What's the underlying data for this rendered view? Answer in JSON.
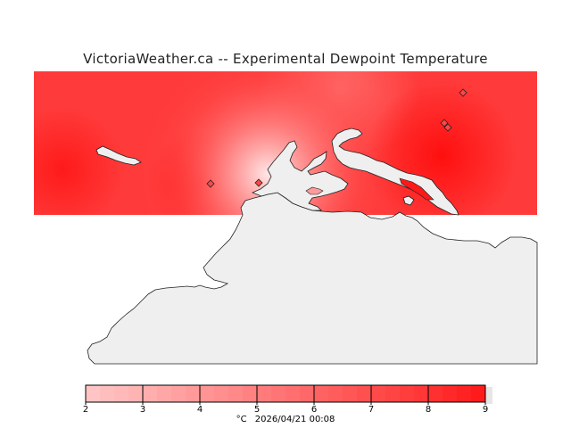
{
  "title": "VictoriaWeather.ca -- Experimental Dewpoint Temperature",
  "legend": {
    "unit": "°C",
    "ticks": [
      "2",
      "3",
      "4",
      "5",
      "6",
      "7",
      "8",
      "9"
    ],
    "colors": [
      "#ffc4c4",
      "#ffadad",
      "#ff9494",
      "#ff7b7b",
      "#ff6262",
      "#ff4a4a",
      "#ff3030",
      "#ff1414"
    ]
  },
  "timestamp": "2026/04/21 00:08",
  "map": {
    "field_color": "#ff3a3a",
    "land_color": "#efefef",
    "station_count": 5
  }
}
